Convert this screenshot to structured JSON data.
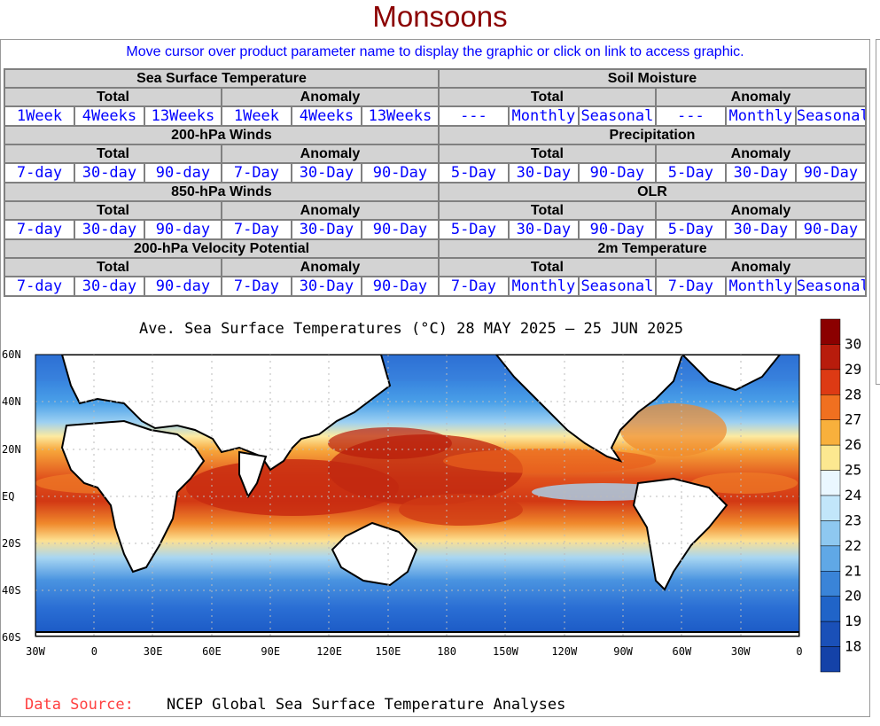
{
  "page": {
    "title": "Monsoons",
    "instructions": "Move cursor over product parameter name to display the graphic or click on link to access graphic."
  },
  "nav": {
    "sst": {
      "heading": "Sea Surface Temperature",
      "total": "Total",
      "anomaly": "Anomaly",
      "total_links": [
        "1Week",
        "4Weeks",
        "13Weeks"
      ],
      "anomaly_links": [
        "1Week",
        "4Weeks",
        "13Weeks"
      ]
    },
    "soil": {
      "heading": "Soil Moisture",
      "total": "Total",
      "anomaly": "Anomaly",
      "total_links": [
        "---",
        "Monthly",
        "Seasonal"
      ],
      "anomaly_links": [
        "---",
        "Monthly",
        "Seasonal"
      ]
    },
    "w200": {
      "heading": "200-hPa Winds",
      "total": "Total",
      "anomaly": "Anomaly",
      "total_links": [
        "7-day",
        "30-day",
        "90-day"
      ],
      "anomaly_links": [
        "7-Day",
        "30-Day",
        "90-Day"
      ]
    },
    "precip": {
      "heading": "Precipitation",
      "total": "Total",
      "anomaly": "Anomaly",
      "total_links": [
        "5-Day",
        "30-Day",
        "90-Day"
      ],
      "anomaly_links": [
        "5-Day",
        "30-Day",
        "90-Day"
      ]
    },
    "w850": {
      "heading": "850-hPa Winds",
      "total": "Total",
      "anomaly": "Anomaly",
      "total_links": [
        "7-day",
        "30-day",
        "90-day"
      ],
      "anomaly_links": [
        "7-Day",
        "30-Day",
        "90-Day"
      ]
    },
    "olr": {
      "heading": "OLR",
      "total": "Total",
      "anomaly": "Anomaly",
      "total_links": [
        "5-Day",
        "30-Day",
        "90-Day"
      ],
      "anomaly_links": [
        "5-Day",
        "30-Day",
        "90-Day"
      ]
    },
    "vp200": {
      "heading": "200-hPa Velocity Potential",
      "total": "Total",
      "anomaly": "Anomaly",
      "total_links": [
        "7-day",
        "30-day",
        "90-day"
      ],
      "anomaly_links": [
        "7-Day",
        "30-Day",
        "90-Day"
      ]
    },
    "t2m": {
      "heading": "2m Temperature",
      "total": "Total",
      "anomaly": "Anomaly",
      "total_links": [
        "7-Day",
        "Monthly",
        "Seasonal"
      ],
      "anomaly_links": [
        "7-Day",
        "Monthly",
        "Seasonal"
      ]
    }
  },
  "map": {
    "title": "Ave. Sea Surface Temperatures (°C) 28 MAY 2025 – 25 JUN 2025",
    "lat_labels": [
      "60N",
      "40N",
      "20N",
      "EQ",
      "20S",
      "40S",
      "60S"
    ],
    "lon_labels": [
      "30W",
      "0",
      "30E",
      "60E",
      "90E",
      "120E",
      "150E",
      "180",
      "150W",
      "120W",
      "90W",
      "60W",
      "30W",
      "0"
    ],
    "colorbar_labels": [
      "30",
      "29",
      "28",
      "27",
      "26",
      "25",
      "24",
      "23",
      "22",
      "21",
      "20",
      "19",
      "18"
    ],
    "colorbar_colors": [
      "#8b0000",
      "#b81c0c",
      "#dd3a14",
      "#f07020",
      "#f8b03c",
      "#fce890",
      "#eaf7ff",
      "#c2e6fa",
      "#8ec8f0",
      "#60a8e6",
      "#3a84d8",
      "#2064c8",
      "#1a50b8",
      "#1442a8"
    ],
    "source_label": "Data Source:",
    "source_text": "NCEP Global Sea Surface Temperature Analyses"
  },
  "colors": {
    "title": "#8b0000",
    "link": "#0000ff",
    "header_bg": "#d3d3d3",
    "source_label": "#ff4040"
  }
}
